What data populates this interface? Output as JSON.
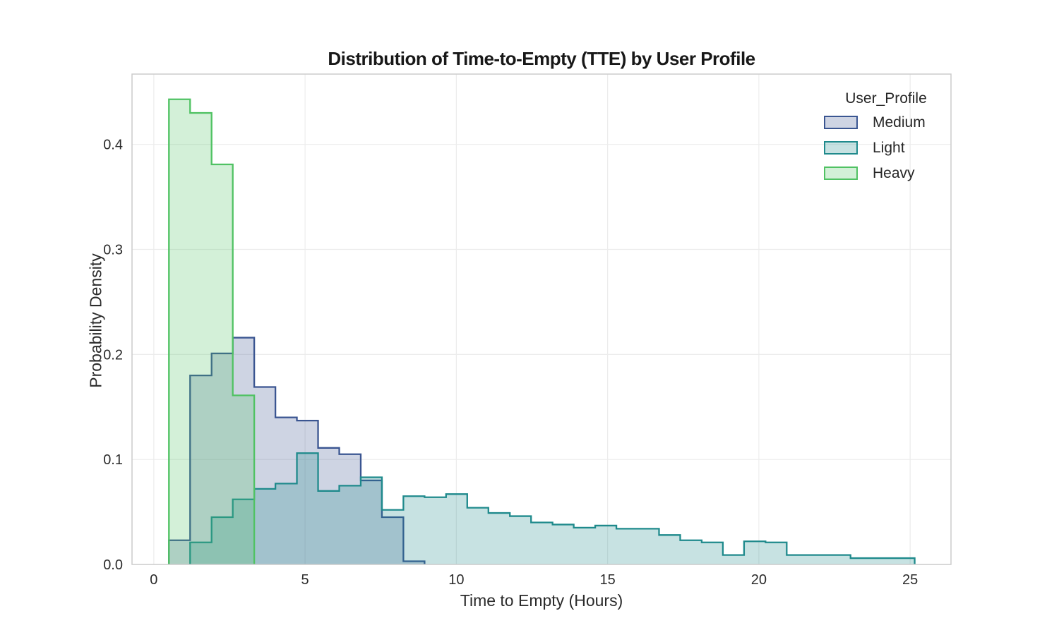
{
  "title": "Distribution of Time-to-Empty (TTE) by User Profile",
  "axes": {
    "xlabel": "Time to Empty (Hours)",
    "ylabel": "Probability Density"
  },
  "legend": {
    "title": "User_Profile",
    "items": [
      "Medium",
      "Light",
      "Heavy"
    ]
  },
  "colors": {
    "medium_edge": "#3a5591",
    "light_edge": "#1f8a8c",
    "heavy_edge": "#50c263",
    "grid": "#ececec",
    "spine": "#cccccc",
    "tick_text": "#2b2b2b"
  },
  "chart_data": {
    "type": "bar",
    "subtype": "step-histogram-density",
    "title": "Distribution of Time-to-Empty (TTE) by User Profile",
    "xlabel": "Time to Empty (Hours)",
    "ylabel": "Probability Density",
    "xlim": [
      -0.72,
      26.35
    ],
    "ylim": [
      0,
      0.467
    ],
    "xticks": [
      0,
      5,
      10,
      15,
      20,
      25
    ],
    "xticklabels": [
      "0",
      "5",
      "10",
      "15",
      "20",
      "25"
    ],
    "yticks": [
      0.0,
      0.1,
      0.2,
      0.3,
      0.4
    ],
    "yticklabels": [
      "0.0",
      "0.1",
      "0.2",
      "0.3",
      "0.4"
    ],
    "grid": true,
    "legend_title": "User_Profile",
    "legend_position": "upper right",
    "fill_alpha": 0.25,
    "draw_order": [
      "Medium",
      "Light",
      "Heavy"
    ],
    "bin_edges": [
      0.5,
      1.2,
      1.91,
      2.61,
      3.32,
      4.02,
      4.73,
      5.43,
      6.13,
      6.84,
      7.54,
      8.25,
      8.95,
      9.66,
      10.36,
      11.06,
      11.77,
      12.47,
      13.18,
      13.88,
      14.59,
      15.29,
      15.99,
      16.7,
      17.4,
      18.11,
      18.81,
      19.51,
      20.22,
      20.92,
      21.63,
      22.33,
      23.03,
      23.74,
      24.44,
      25.15
    ],
    "series": [
      {
        "name": "Medium",
        "color": "#3a5591",
        "densities": [
          0.023,
          0.18,
          0.201,
          0.216,
          0.169,
          0.14,
          0.137,
          0.111,
          0.105,
          0.08,
          0.045,
          0.003,
          0,
          0,
          0,
          0,
          0,
          0,
          0,
          0,
          0,
          0,
          0,
          0,
          0,
          0,
          0,
          0,
          0,
          0,
          0,
          0,
          0,
          0,
          0
        ]
      },
      {
        "name": "Light",
        "color": "#1f8a8c",
        "densities": [
          0,
          0.021,
          0.045,
          0.062,
          0.072,
          0.077,
          0.106,
          0.07,
          0.075,
          0.083,
          0.052,
          0.065,
          0.064,
          0.067,
          0.054,
          0.049,
          0.046,
          0.04,
          0.038,
          0.035,
          0.037,
          0.034,
          0.034,
          0.028,
          0.023,
          0.021,
          0.009,
          0.022,
          0.021,
          0.009,
          0.009,
          0.009,
          0.006,
          0.006,
          0.006
        ]
      },
      {
        "name": "Heavy",
        "color": "#50c263",
        "densities": [
          0.443,
          0.43,
          0.381,
          0.161,
          0,
          0,
          0,
          0,
          0,
          0,
          0,
          0,
          0,
          0,
          0,
          0,
          0,
          0,
          0,
          0,
          0,
          0,
          0,
          0,
          0,
          0,
          0,
          0,
          0,
          0,
          0,
          0,
          0,
          0,
          0
        ]
      }
    ]
  }
}
